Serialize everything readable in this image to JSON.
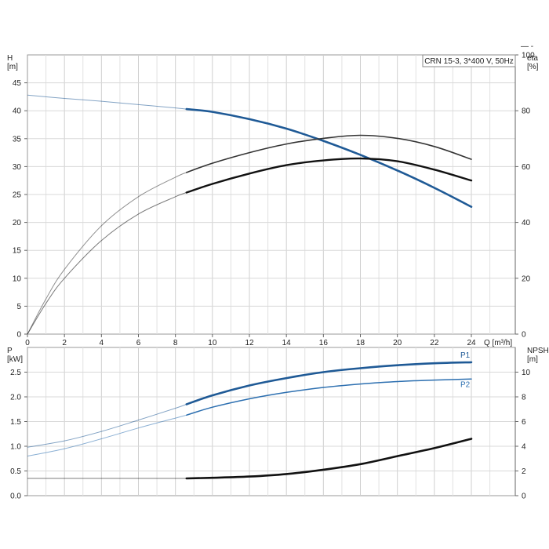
{
  "chart_data": [
    {
      "type": "line",
      "title": "CRN 15-3, 3*400 V, 50Hz",
      "xlabel": "Q [m³/h]",
      "ylabel_left": "H\n[m]",
      "ylabel_right": "eta\n[%]",
      "xlim": [
        0,
        25.5
      ],
      "ylim_left": [
        0,
        50
      ],
      "ylim_right": [
        0,
        100
      ],
      "xticks": [
        0,
        2,
        4,
        6,
        8,
        10,
        12,
        14,
        16,
        18,
        20,
        22,
        24
      ],
      "yticks_left": [
        0,
        5,
        10,
        15,
        20,
        25,
        30,
        35,
        40,
        45
      ],
      "yticks_right": [
        0,
        20,
        40,
        60,
        80,
        100
      ],
      "grid": true,
      "series": [
        {
          "axis": "left",
          "color": "#1f5a96",
          "width": 2.6,
          "x": [
            0,
            2,
            4,
            6,
            8,
            8.6,
            10,
            12,
            14,
            16,
            18,
            20,
            22,
            24
          ],
          "y": [
            42.8,
            42.2,
            41.7,
            41.1,
            40.5,
            40.3,
            39.8,
            38.5,
            36.8,
            34.6,
            32.1,
            29.3,
            26.2,
            22.8
          ],
          "faded_before": 8.6
        },
        {
          "axis": "right",
          "color": "#333333",
          "width": 1.6,
          "x": [
            0,
            1,
            2,
            4,
            6,
            8,
            8.6,
            10,
            12,
            14,
            16,
            18,
            20,
            22,
            24
          ],
          "y": [
            0,
            12.6,
            23.2,
            38.8,
            49.2,
            56.2,
            57.9,
            61.2,
            65.0,
            68.1,
            70.1,
            71.2,
            70.1,
            67.2,
            62.6
          ],
          "faded_before": 8.6
        },
        {
          "axis": "right",
          "color": "#111111",
          "width": 2.4,
          "x": [
            0,
            1,
            2,
            4,
            6,
            8,
            8.6,
            10,
            12,
            14,
            16,
            18,
            20,
            22,
            24
          ],
          "y": [
            0,
            11.0,
            20.0,
            33.5,
            43.0,
            49.2,
            50.7,
            53.8,
            57.5,
            60.5,
            62.2,
            62.9,
            61.9,
            58.9,
            55.0
          ],
          "faded_before": 8.6
        }
      ]
    },
    {
      "type": "line",
      "xlabel": "",
      "ylabel_left": "P\n[kW]",
      "ylabel_right": "NPSH\n[m]",
      "xlim": [
        0,
        25.5
      ],
      "ylim_left": [
        0,
        3.0
      ],
      "ylim_right": [
        0,
        12
      ],
      "yticks_left": [
        "0.0",
        "0.5",
        "1.0",
        "1.5",
        "2.0",
        "2.5"
      ],
      "yticks_right": [
        0,
        2,
        4,
        6,
        8,
        10
      ],
      "grid": true,
      "series": [
        {
          "name": "P1",
          "axis": "left",
          "color": "#1f5a96",
          "width": 2.6,
          "x": [
            0,
            2,
            4,
            6,
            8,
            8.6,
            10,
            12,
            14,
            16,
            18,
            20,
            22,
            24
          ],
          "y": [
            0.98,
            1.11,
            1.3,
            1.53,
            1.77,
            1.85,
            2.03,
            2.23,
            2.38,
            2.5,
            2.58,
            2.64,
            2.68,
            2.7
          ],
          "faded_before": 8.6
        },
        {
          "name": "P2",
          "axis": "left",
          "color": "#2c6fb0",
          "width": 1.5,
          "x": [
            0,
            2,
            4,
            6,
            8,
            8.6,
            10,
            12,
            14,
            16,
            18,
            20,
            22,
            24
          ],
          "y": [
            0.8,
            0.95,
            1.15,
            1.37,
            1.57,
            1.63,
            1.79,
            1.96,
            2.09,
            2.19,
            2.26,
            2.31,
            2.34,
            2.36
          ],
          "faded_before": 8.6
        },
        {
          "axis": "right",
          "color": "#111111",
          "width": 2.6,
          "x": [
            0,
            2,
            4,
            6,
            8,
            8.6,
            10,
            12,
            14,
            16,
            18,
            20,
            22,
            24
          ],
          "y": [
            1.4,
            1.4,
            1.4,
            1.4,
            1.4,
            1.4,
            1.45,
            1.55,
            1.75,
            2.1,
            2.55,
            3.2,
            3.85,
            4.6
          ],
          "faded_before": 8.6
        }
      ]
    }
  ],
  "legend_marker_text": "— -"
}
